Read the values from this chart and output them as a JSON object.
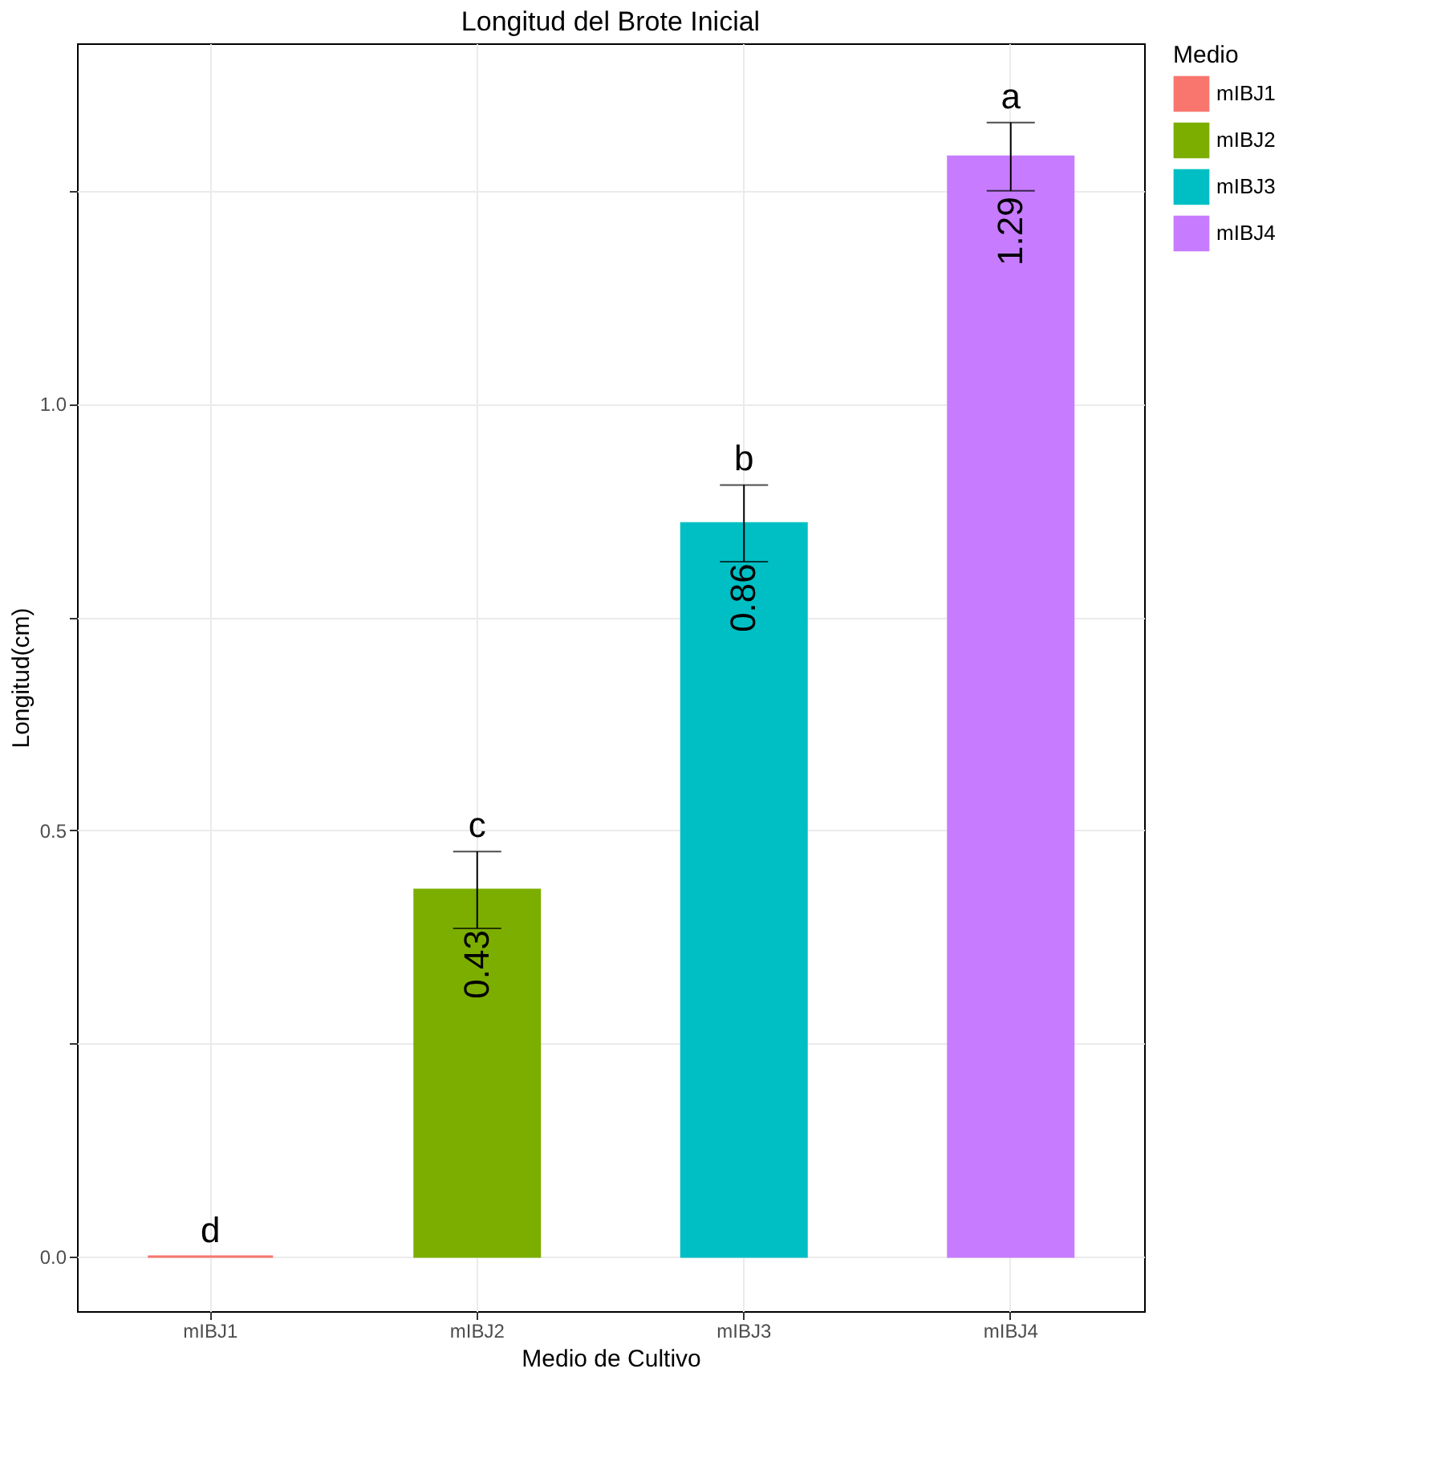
{
  "chart_data": {
    "type": "bar",
    "title": "Longitud del Brote Inicial",
    "xlabel": "Medio de Cultivo",
    "ylabel": "Longitud(cm)",
    "legend_title": "Medio",
    "categories": [
      "mIBJ1",
      "mIBJ2",
      "mIBJ3",
      "mIBJ4"
    ],
    "series": [
      {
        "name": "mIBJ1",
        "color": "#f8766d",
        "values": [
          0,
          null,
          null,
          null
        ]
      },
      {
        "name": "mIBJ2",
        "color": "#7cae00",
        "values": [
          null,
          0.43,
          null,
          null
        ],
        "errors": [
          null,
          0.045,
          null,
          null
        ],
        "value_labels": [
          null,
          "0.43",
          null,
          null
        ]
      },
      {
        "name": "mIBJ3",
        "color": "#00bfc4",
        "values": [
          null,
          null,
          0.86,
          null
        ],
        "errors": [
          null,
          null,
          0.045,
          null
        ],
        "value_labels": [
          null,
          null,
          "0.86",
          null
        ]
      },
      {
        "name": "mIBJ4",
        "color": "#c77cff",
        "values": [
          null,
          null,
          null,
          1.29
        ],
        "errors": [
          null,
          null,
          null,
          0.04
        ],
        "value_labels": [
          null,
          null,
          null,
          "1.29"
        ]
      }
    ],
    "annotations": [
      {
        "text": "d",
        "x": "mIBJ1",
        "y": 0
      },
      {
        "text": "c",
        "x": "mIBJ2",
        "y": 0.475
      },
      {
        "text": "b",
        "x": "mIBJ3",
        "y": 0.905
      },
      {
        "text": "a",
        "x": "mIBJ4",
        "y": 1.33
      }
    ],
    "ylim": [
      -0.064,
      1.423
    ],
    "yticks": [
      {
        "value": 0,
        "label": "0.0"
      },
      {
        "value": 0.25,
        "label": null
      },
      {
        "value": 0.5,
        "label": "0.5"
      },
      {
        "value": 0.75,
        "label": null
      },
      {
        "value": 1.0,
        "label": "1.0"
      },
      {
        "value": 1.25,
        "label": null
      }
    ],
    "grid": true,
    "legend": "right"
  }
}
